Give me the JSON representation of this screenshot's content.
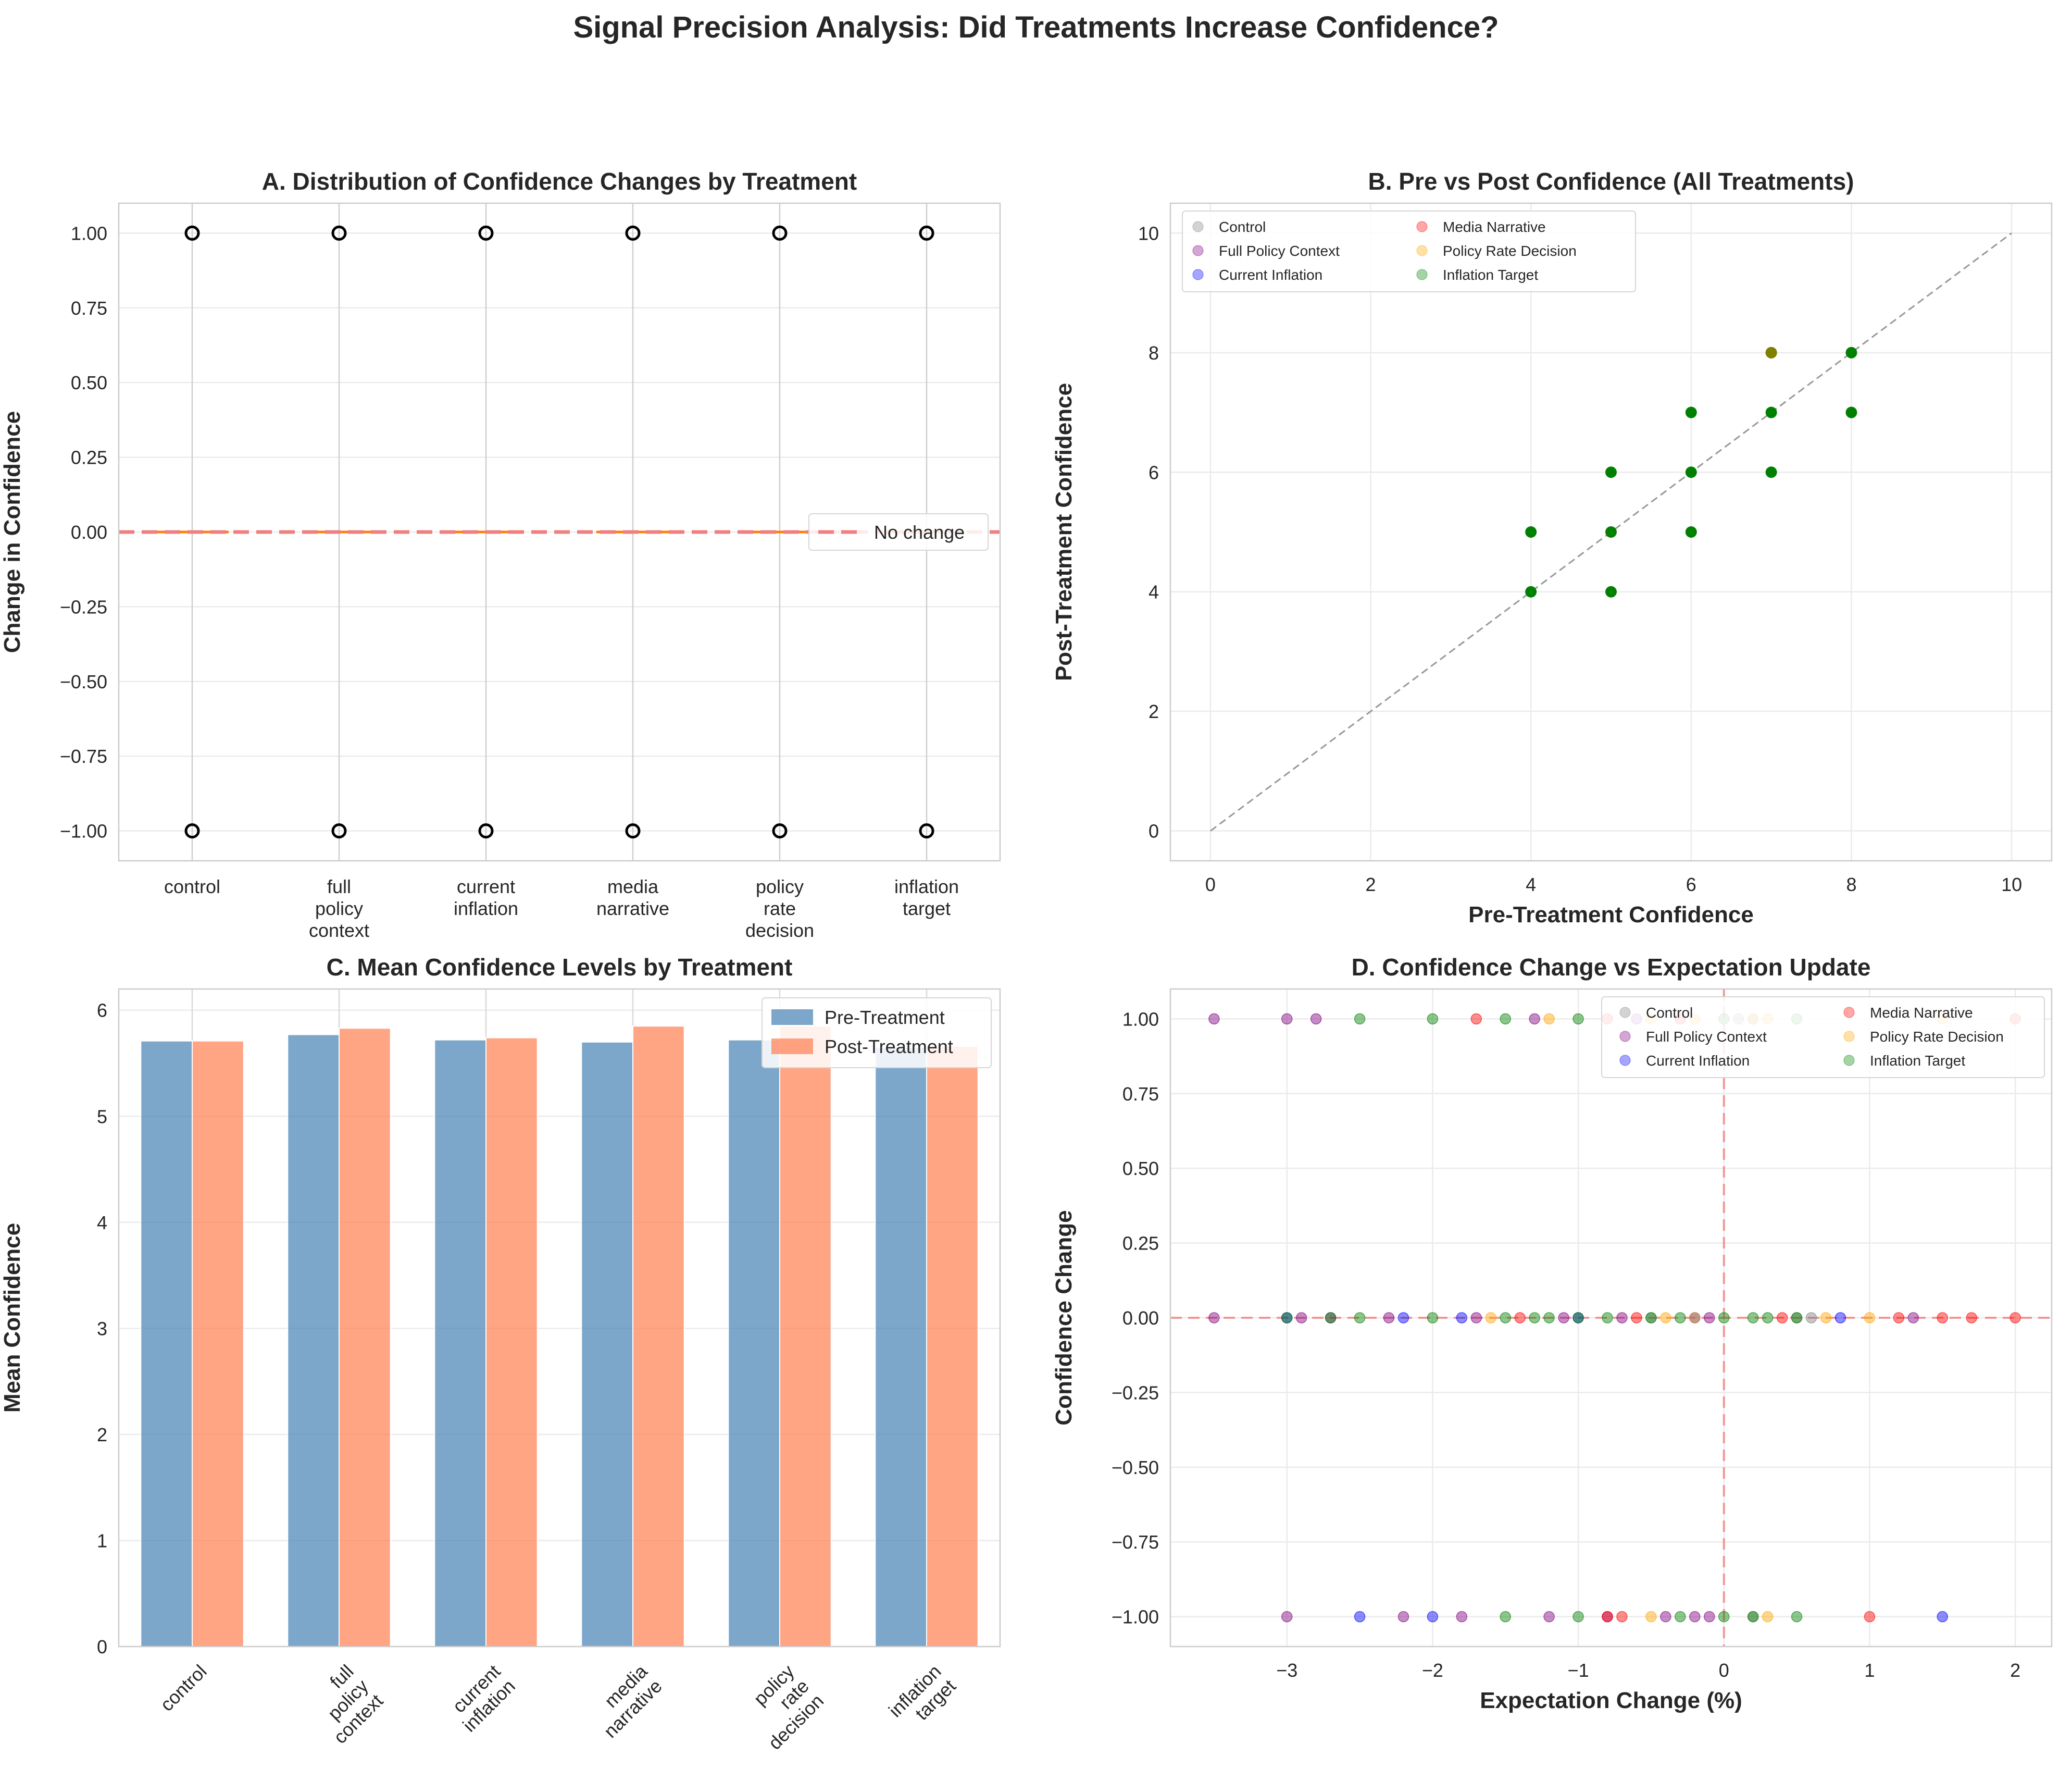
{
  "figure": {
    "title": "Signal Precision Analysis: Did Treatments Increase Confidence?"
  },
  "colors": {
    "control": "#808080",
    "full_policy_context": "#800080",
    "current_inflation": "#0000ff",
    "media_narrative": "#ff0000",
    "policy_rate_decision": "#ffa500",
    "inflation_target": "#008000",
    "pre_bar": "#4682b4",
    "post_bar": "#ff7f50",
    "no_change_line": "#f08080",
    "median": "#ff7f0e"
  },
  "chart_data": [
    {
      "id": "A",
      "type": "box",
      "title": "A. Distribution of Confidence Changes by Treatment",
      "xlabel": "",
      "ylabel": "Change in Confidence",
      "ylim": [
        -1.1,
        1.1
      ],
      "yticks": [
        -1.0,
        -0.75,
        -0.5,
        -0.25,
        0.0,
        0.25,
        0.5,
        0.75,
        1.0
      ],
      "categories": [
        "control",
        "full policy context",
        "current inflation",
        "media narrative",
        "policy rate decision",
        "inflation target"
      ],
      "category_label_lines": [
        [
          "control"
        ],
        [
          "full",
          "policy",
          "context"
        ],
        [
          "current",
          "inflation"
        ],
        [
          "media",
          "narrative"
        ],
        [
          "policy",
          "rate",
          "decision"
        ],
        [
          "inflation",
          "target"
        ]
      ],
      "box": {
        "q1": 0,
        "median": 0,
        "q3": 0,
        "whisker_low": 0,
        "whisker_high": 0
      },
      "outliers": [
        -1,
        1
      ],
      "reference_line": {
        "y": 0,
        "label": "No change"
      },
      "legend": {
        "position": "center-right",
        "entries": [
          "No change"
        ]
      },
      "grid": true
    },
    {
      "id": "B",
      "type": "scatter",
      "title": "B. Pre vs Post Confidence (All Treatments)",
      "xlabel": "Pre-Treatment Confidence",
      "ylabel": "Post-Treatment Confidence",
      "xlim": [
        -0.5,
        10.5
      ],
      "ylim": [
        -0.5,
        10.5
      ],
      "xticks": [
        0,
        2,
        4,
        6,
        8,
        10
      ],
      "yticks": [
        0,
        2,
        4,
        6,
        8,
        10
      ],
      "identity_line": [
        [
          0,
          0
        ],
        [
          10,
          10
        ]
      ],
      "series_names": [
        "Control",
        "Full Policy Context",
        "Current Inflation",
        "Media Narrative",
        "Policy Rate Decision",
        "Inflation Target"
      ],
      "legend": {
        "position": "top-left",
        "columns": 2
      },
      "points": [
        {
          "x": 4,
          "y": 4
        },
        {
          "x": 4,
          "y": 5
        },
        {
          "x": 5,
          "y": 4
        },
        {
          "x": 5,
          "y": 5
        },
        {
          "x": 5,
          "y": 6
        },
        {
          "x": 6,
          "y": 5
        },
        {
          "x": 6,
          "y": 6
        },
        {
          "x": 6,
          "y": 7
        },
        {
          "x": 7,
          "y": 6
        },
        {
          "x": 7,
          "y": 7
        },
        {
          "x": 7,
          "y": 8
        },
        {
          "x": 8,
          "y": 7
        },
        {
          "x": 8,
          "y": 8
        }
      ],
      "highlight_point": {
        "x": 7,
        "y": 8,
        "color": "#808000"
      },
      "grid": true
    },
    {
      "id": "C",
      "type": "bar",
      "title": "C. Mean Confidence Levels by Treatment",
      "xlabel": "",
      "ylabel": "Mean Confidence",
      "ylim": [
        0,
        6.2
      ],
      "yticks": [
        0,
        1,
        2,
        3,
        4,
        5,
        6
      ],
      "categories": [
        "control",
        "full policy context",
        "current inflation",
        "media narrative",
        "policy rate decision",
        "inflation target"
      ],
      "category_label_lines": [
        [
          "control"
        ],
        [
          "full",
          "policy",
          "context"
        ],
        [
          "current",
          "inflation"
        ],
        [
          "media",
          "narrative"
        ],
        [
          "policy",
          "rate",
          "decision"
        ],
        [
          "inflation",
          "target"
        ]
      ],
      "series": [
        {
          "name": "Pre-Treatment",
          "values": [
            5.71,
            5.77,
            5.72,
            5.7,
            5.72,
            5.65
          ]
        },
        {
          "name": "Post-Treatment",
          "values": [
            5.71,
            5.83,
            5.74,
            5.85,
            5.85,
            5.66
          ]
        }
      ],
      "legend": {
        "position": "top-right"
      },
      "grid": true
    },
    {
      "id": "D",
      "type": "scatter",
      "title": "D. Confidence Change vs Expectation Update",
      "xlabel": "Expectation Change (%)",
      "ylabel": "Confidence Change",
      "xlim": [
        -3.8,
        2.25
      ],
      "ylim": [
        -1.1,
        1.1
      ],
      "xticks": [
        -3,
        -2,
        -1,
        0,
        1,
        2
      ],
      "yticks": [
        -1.0,
        -0.75,
        -0.5,
        -0.25,
        0.0,
        0.25,
        0.5,
        0.75,
        1.0
      ],
      "reference_lines": {
        "x": 0,
        "y": 0
      },
      "series_names": [
        "Control",
        "Full Policy Context",
        "Current Inflation",
        "Media Narrative",
        "Policy Rate Decision",
        "Inflation Target"
      ],
      "legend": {
        "position": "top-right",
        "columns": 2
      },
      "series": [
        {
          "name": "Control",
          "color": "#808080",
          "points": [
            [
              0.2,
              1
            ],
            [
              0.1,
              1
            ],
            [
              -0.5,
              0
            ],
            [
              0.6,
              0
            ],
            [
              0.2,
              -1
            ],
            [
              0.5,
              0
            ]
          ]
        },
        {
          "name": "Full Policy Context",
          "color": "#800080",
          "points": [
            [
              -3.5,
              1
            ],
            [
              -3.0,
              1
            ],
            [
              -2.8,
              1
            ],
            [
              -1.3,
              1
            ],
            [
              -0.6,
              1
            ],
            [
              -3.5,
              0
            ],
            [
              -2.9,
              0
            ],
            [
              -2.7,
              0
            ],
            [
              -2.3,
              0
            ],
            [
              -1.7,
              0
            ],
            [
              -1.1,
              0
            ],
            [
              -0.7,
              0
            ],
            [
              -0.1,
              0
            ],
            [
              1.3,
              0
            ],
            [
              -3.0,
              -1
            ],
            [
              -2.2,
              -1
            ],
            [
              -1.8,
              -1
            ],
            [
              -1.2,
              -1
            ],
            [
              -0.8,
              -1
            ],
            [
              -0.4,
              -1
            ],
            [
              -0.2,
              -1
            ],
            [
              -0.1,
              -1
            ]
          ]
        },
        {
          "name": "Current Inflation",
          "color": "#0000ff",
          "points": [
            [
              -3.0,
              0
            ],
            [
              -2.2,
              0
            ],
            [
              -1.8,
              0
            ],
            [
              -1.0,
              0
            ],
            [
              -0.2,
              0
            ],
            [
              0.8,
              0
            ],
            [
              -2.5,
              -1
            ],
            [
              -2.0,
              -1
            ],
            [
              1.5,
              -1
            ]
          ]
        },
        {
          "name": "Media Narrative",
          "color": "#ff0000",
          "points": [
            [
              -1.7,
              1
            ],
            [
              -0.8,
              1
            ],
            [
              -0.3,
              1
            ],
            [
              2.0,
              1
            ],
            [
              -1.4,
              0
            ],
            [
              -0.6,
              0
            ],
            [
              0.4,
              0
            ],
            [
              1.2,
              0
            ],
            [
              1.5,
              0
            ],
            [
              1.7,
              0
            ],
            [
              2.0,
              0
            ],
            [
              -0.7,
              -1
            ],
            [
              -0.8,
              -1
            ],
            [
              1.0,
              -1
            ]
          ]
        },
        {
          "name": "Policy Rate Decision",
          "color": "#ffa500",
          "points": [
            [
              -1.2,
              1
            ],
            [
              -0.5,
              1
            ],
            [
              -0.2,
              1
            ],
            [
              0.3,
              1
            ],
            [
              0.2,
              1
            ],
            [
              1.5,
              1
            ],
            [
              -1.6,
              0
            ],
            [
              -0.4,
              0
            ],
            [
              -0.2,
              0
            ],
            [
              0.7,
              0
            ],
            [
              1.0,
              0
            ],
            [
              0.3,
              -1
            ],
            [
              -0.5,
              -1
            ]
          ]
        },
        {
          "name": "Inflation Target",
          "color": "#008000",
          "points": [
            [
              -2.5,
              1
            ],
            [
              -2.0,
              1
            ],
            [
              -1.5,
              1
            ],
            [
              -1.0,
              1
            ],
            [
              0.0,
              1
            ],
            [
              0.5,
              1
            ],
            [
              -3.0,
              0
            ],
            [
              -2.7,
              0
            ],
            [
              -2.5,
              0
            ],
            [
              -2.0,
              0
            ],
            [
              -1.5,
              0
            ],
            [
              -1.3,
              0
            ],
            [
              -1.2,
              0
            ],
            [
              -1.0,
              0
            ],
            [
              -0.8,
              0
            ],
            [
              -0.5,
              0
            ],
            [
              -0.3,
              0
            ],
            [
              0.0,
              0
            ],
            [
              0.2,
              0
            ],
            [
              0.3,
              0
            ],
            [
              0.5,
              0
            ],
            [
              -1.5,
              -1
            ],
            [
              -1.0,
              -1
            ],
            [
              -0.3,
              -1
            ],
            [
              0.0,
              -1
            ],
            [
              0.2,
              -1
            ],
            [
              0.5,
              -1
            ]
          ]
        }
      ],
      "grid": true
    }
  ]
}
